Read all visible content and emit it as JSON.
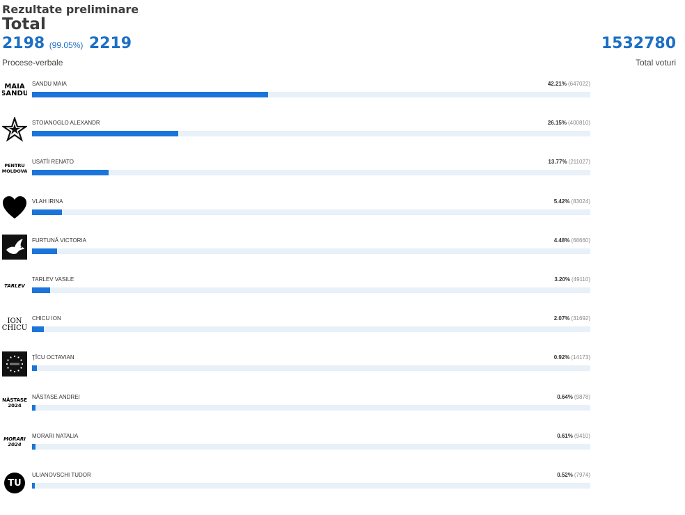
{
  "header": {
    "subtitle": "Rezultate preliminare",
    "title": "Total",
    "processed": "2198",
    "processed_pct": "(99.05%)",
    "processed_total": "2219",
    "processed_label": "Procese-verbale",
    "total_votes": "1532780",
    "total_votes_label": "Total voturi"
  },
  "chart_data": {
    "type": "bar",
    "orientation": "horizontal",
    "xlim": [
      0,
      100
    ],
    "categories": [
      "SANDU MAIA",
      "STOIANOGLO ALEXANDR",
      "USATÎI RENATO",
      "VLAH IRINA",
      "FURTUNĂ VICTORIA",
      "TARLEV VASILE",
      "CHICU ION",
      "ŢÎCU OCTAVIAN",
      "NĂSTASE ANDREI",
      "MORARI NATALIA",
      "ULIANOVSCHI TUDOR"
    ],
    "values": [
      42.21,
      26.15,
      13.77,
      5.42,
      4.48,
      3.2,
      2.07,
      0.92,
      0.64,
      0.61,
      0.52
    ],
    "value_labels": [
      "42.21%",
      "26.15%",
      "13.77%",
      "5.42%",
      "4.48%",
      "3.20%",
      "2.07%",
      "0.92%",
      "0.64%",
      "0.61%",
      "0.52%"
    ],
    "votes": [
      647022,
      400810,
      211027,
      83024,
      68660,
      49110,
      31692,
      14173,
      9878,
      9410,
      7974
    ],
    "vote_labels": [
      "(647022)",
      "(400810)",
      "(211027)",
      "(83024)",
      "(68660)",
      "(49110)",
      "(31692)",
      "(14173)",
      "(9878)",
      "(9410)",
      "(7974)"
    ],
    "bar_color": "#1b74d9",
    "track_color": "#e8f0f8"
  },
  "logos": {
    "maia_sandu": [
      "MAIA",
      "SANDU"
    ],
    "pentru_moldova": [
      "PENTRU",
      "MOLDOVA"
    ],
    "tarlev": "TARLEV",
    "ion_chicu": [
      "ION",
      "CHICU"
    ],
    "nastase": [
      "NĂSTASE",
      "2024"
    ],
    "morari": [
      "MORARI",
      "2024"
    ],
    "tu": "TU"
  },
  "icons": [
    "star-icon",
    "heart-icon",
    "dove-icon",
    "eu-stars-icon"
  ]
}
